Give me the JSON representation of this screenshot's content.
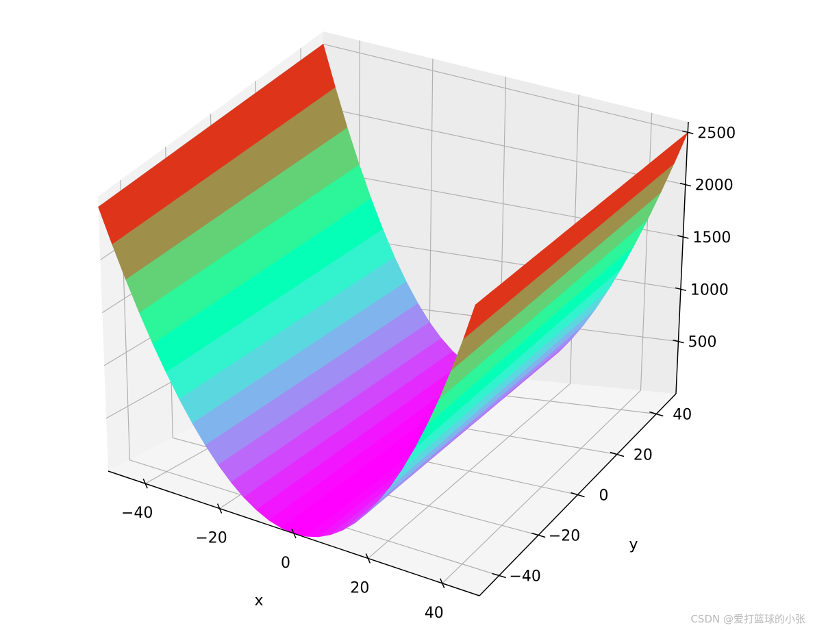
{
  "chart_data": {
    "type": "surface3d",
    "function": "z = x^2",
    "xlabel": "x",
    "ylabel": "y",
    "zlabel": "",
    "xlim": [
      -50,
      50
    ],
    "ylim": [
      -50,
      50
    ],
    "zlim": [
      0,
      2600
    ],
    "x_ticks": [
      -40,
      -20,
      0,
      20,
      40
    ],
    "y_ticks": [
      -40,
      -20,
      0,
      20,
      40
    ],
    "z_ticks": [
      500,
      1000,
      1500,
      2000,
      2500
    ],
    "x_tick_labels": [
      "−40",
      "−20",
      "0",
      "20",
      "40"
    ],
    "y_tick_labels": [
      "−40",
      "−20",
      "0",
      "20",
      "40"
    ],
    "z_tick_labels": [
      "500",
      "1000",
      "1500",
      "2000",
      "2500"
    ],
    "colormap": "rainbow",
    "grid": true,
    "pane_colors": [
      "#f2f2f2",
      "#ececec",
      "#f5f5f5"
    ]
  },
  "watermark": "CSDN @爱打篮球的小张"
}
